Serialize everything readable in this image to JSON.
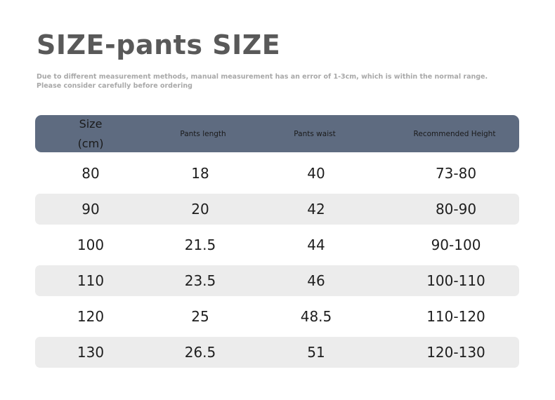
{
  "title": "SIZE-pants SIZE",
  "notice": [
    "Due to different measurement methods, manual measurement has an error of 1-3cm, which is within the normal range.",
    "Please consider carefully before ordering"
  ],
  "colors": {
    "header_bg": "#5e6b80",
    "stripe": "#ececec",
    "title": "#595959"
  },
  "table": {
    "headers": [
      {
        "line1": "Size",
        "line2": "(cm)"
      },
      "Pants length",
      "Pants waist",
      "Recommended Height"
    ],
    "rows": [
      [
        "80",
        "18",
        "40",
        "73-80"
      ],
      [
        "90",
        "20",
        "42",
        "80-90"
      ],
      [
        "100",
        "21.5",
        "44",
        "90-100"
      ],
      [
        "110",
        "23.5",
        "46",
        "100-110"
      ],
      [
        "120",
        "25",
        "48.5",
        "110-120"
      ],
      [
        "130",
        "26.5",
        "51",
        "120-130"
      ]
    ]
  }
}
